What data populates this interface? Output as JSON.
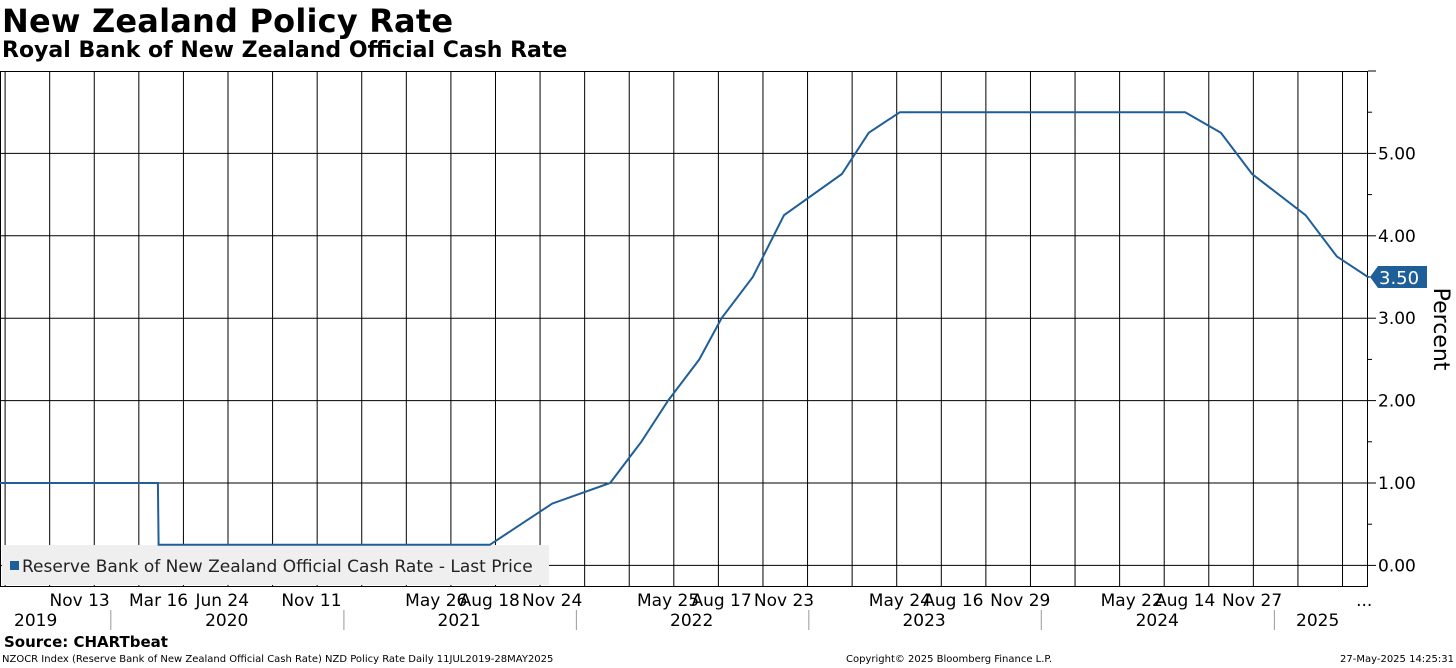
{
  "title": "New Zealand Policy Rate",
  "subtitle": "Royal Bank of New Zealand Official Cash Rate",
  "source": "Source: CHARTbeat",
  "footer": {
    "left": "NZOCR Index (Reserve Bank of New Zealand Official Cash Rate) NZD Policy Rate  Daily 11JUL2019-28MAY2025",
    "center": "Copyright© 2025 Bloomberg Finance L.P.",
    "right": "27-May-2025 14:25:31"
  },
  "colors": {
    "line": "#1f5f99",
    "grid": "#000000",
    "legend_bg": "#efefef"
  },
  "chart_data": {
    "type": "line",
    "title": "New Zealand Policy Rate",
    "subtitle": "Royal Bank of New Zealand Official Cash Rate",
    "ylabel": "Percent",
    "ylim": [
      -0.25,
      6.0
    ],
    "y_axis_side": "right",
    "y_ticks": [
      "0.00",
      "1.00",
      "2.00",
      "3.00",
      "4.00",
      "5.00"
    ],
    "grid": true,
    "legend": {
      "placement": "bottom-left",
      "entries": [
        "Reserve Bank of New Zealand Official Cash Rate - Last Price"
      ]
    },
    "last_value_label": "3.50",
    "xlim": [
      "2019-07-11",
      "2025-05-28"
    ],
    "x_tick_labels": [
      {
        "date": "2019-11-13",
        "label": "Nov 13"
      },
      {
        "date": "2020-03-16",
        "label": "Mar 16"
      },
      {
        "date": "2020-06-24",
        "label": "Jun 24"
      },
      {
        "date": "2020-11-11",
        "label": "Nov 11"
      },
      {
        "date": "2021-05-26",
        "label": "May 26"
      },
      {
        "date": "2021-08-18",
        "label": "Aug 18"
      },
      {
        "date": "2021-11-24",
        "label": "Nov 24"
      },
      {
        "date": "2022-05-25",
        "label": "May 25"
      },
      {
        "date": "2022-08-17",
        "label": "Aug 17"
      },
      {
        "date": "2022-11-23",
        "label": "Nov 23"
      },
      {
        "date": "2023-05-24",
        "label": "May 24"
      },
      {
        "date": "2023-08-16",
        "label": "Aug 16"
      },
      {
        "date": "2023-11-29",
        "label": "Nov 29"
      },
      {
        "date": "2024-05-22",
        "label": "May 22"
      },
      {
        "date": "2024-08-14",
        "label": "Aug 14"
      },
      {
        "date": "2024-11-27",
        "label": "Nov 27"
      },
      {
        "date": "2025-05-22",
        "label": "..."
      }
    ],
    "years": [
      "2019",
      "2020",
      "2021",
      "2022",
      "2023",
      "2024",
      "2025"
    ],
    "series": [
      {
        "name": "Reserve Bank of New Zealand Official Cash Rate - Last Price",
        "points": [
          {
            "x": "2019-07-11",
            "y": 1.0
          },
          {
            "x": "2020-03-15",
            "y": 1.0
          },
          {
            "x": "2020-03-16",
            "y": 0.25
          },
          {
            "x": "2021-08-18",
            "y": 0.25
          },
          {
            "x": "2021-10-06",
            "y": 0.5
          },
          {
            "x": "2021-11-24",
            "y": 0.75
          },
          {
            "x": "2022-02-23",
            "y": 1.0
          },
          {
            "x": "2022-04-13",
            "y": 1.5
          },
          {
            "x": "2022-05-25",
            "y": 2.0
          },
          {
            "x": "2022-07-13",
            "y": 2.5
          },
          {
            "x": "2022-08-17",
            "y": 3.0
          },
          {
            "x": "2022-10-05",
            "y": 3.5
          },
          {
            "x": "2022-11-23",
            "y": 4.25
          },
          {
            "x": "2023-02-22",
            "y": 4.75
          },
          {
            "x": "2023-04-05",
            "y": 5.25
          },
          {
            "x": "2023-05-24",
            "y": 5.5
          },
          {
            "x": "2024-08-14",
            "y": 5.5
          },
          {
            "x": "2024-10-09",
            "y": 5.25
          },
          {
            "x": "2024-11-27",
            "y": 4.75
          },
          {
            "x": "2025-02-19",
            "y": 4.25
          },
          {
            "x": "2025-04-09",
            "y": 3.75
          },
          {
            "x": "2025-05-28",
            "y": 3.5
          }
        ]
      }
    ]
  }
}
